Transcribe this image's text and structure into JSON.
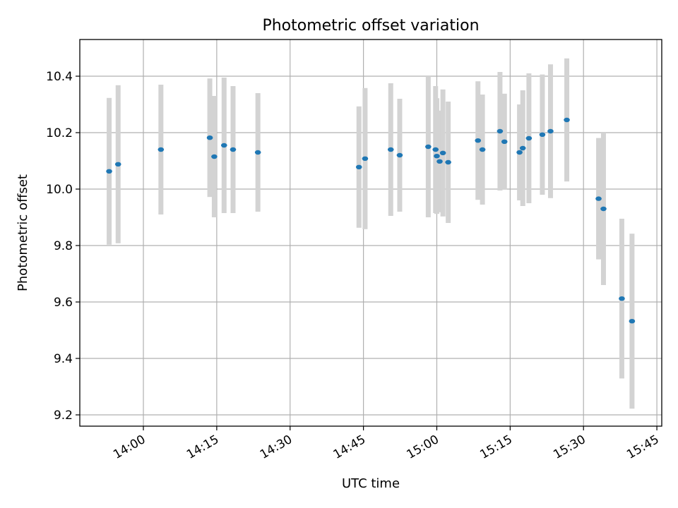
{
  "chart_data": {
    "type": "scatter",
    "title": "Photometric offset variation",
    "xlabel": "UTC time",
    "ylabel": "Photometric offset",
    "x_unit": "minutes",
    "xlim": [
      "13:47",
      "15:46"
    ],
    "ylim": [
      9.16,
      10.53
    ],
    "xticks": [
      "14:00",
      "14:15",
      "14:30",
      "14:45",
      "15:00",
      "15:15",
      "15:30",
      "15:45"
    ],
    "yticks": [
      9.2,
      9.4,
      9.6,
      9.8,
      10.0,
      10.2,
      10.4
    ],
    "ytick_labels": [
      "9.2",
      "9.4",
      "9.6",
      "9.8",
      "10.0",
      "10.2",
      "10.4"
    ],
    "grid": true,
    "colors": {
      "point": "#1f77b4",
      "errorbar": "#d3d3d3",
      "grid": "#b0b0b0"
    },
    "points": [
      {
        "x": "13:53:00",
        "y": 10.063,
        "err": 0.26
      },
      {
        "x": "13:54:50",
        "y": 10.088,
        "err": 0.28
      },
      {
        "x": "14:03:35",
        "y": 10.14,
        "err": 0.23
      },
      {
        "x": "14:13:35",
        "y": 10.182,
        "err": 0.21
      },
      {
        "x": "14:14:30",
        "y": 10.115,
        "err": 0.215
      },
      {
        "x": "14:16:30",
        "y": 10.155,
        "err": 0.24
      },
      {
        "x": "14:18:20",
        "y": 10.14,
        "err": 0.225
      },
      {
        "x": "14:23:25",
        "y": 10.13,
        "err": 0.21
      },
      {
        "x": "14:44:05",
        "y": 10.078,
        "err": 0.215
      },
      {
        "x": "14:45:20",
        "y": 10.108,
        "err": 0.25
      },
      {
        "x": "14:50:35",
        "y": 10.14,
        "err": 0.235
      },
      {
        "x": "14:52:25",
        "y": 10.12,
        "err": 0.2
      },
      {
        "x": "14:58:15",
        "y": 10.15,
        "err": 0.25
      },
      {
        "x": "14:59:45",
        "y": 10.14,
        "err": 0.225
      },
      {
        "x": "15:00:00",
        "y": 10.117,
        "err": 0.205
      },
      {
        "x": "15:00:35",
        "y": 10.098,
        "err": 0.18
      },
      {
        "x": "15:01:15",
        "y": 10.128,
        "err": 0.225
      },
      {
        "x": "15:02:20",
        "y": 10.095,
        "err": 0.215
      },
      {
        "x": "15:08:25",
        "y": 10.172,
        "err": 0.21
      },
      {
        "x": "15:09:20",
        "y": 10.14,
        "err": 0.195
      },
      {
        "x": "15:12:55",
        "y": 10.205,
        "err": 0.21
      },
      {
        "x": "15:13:50",
        "y": 10.168,
        "err": 0.17
      },
      {
        "x": "15:16:55",
        "y": 10.13,
        "err": 0.17
      },
      {
        "x": "15:17:35",
        "y": 10.145,
        "err": 0.205
      },
      {
        "x": "15:18:50",
        "y": 10.18,
        "err": 0.23
      },
      {
        "x": "15:21:35",
        "y": 10.193,
        "err": 0.213
      },
      {
        "x": "15:23:15",
        "y": 10.205,
        "err": 0.237
      },
      {
        "x": "15:26:35",
        "y": 10.245,
        "err": 0.218
      },
      {
        "x": "15:33:05",
        "y": 9.966,
        "err": 0.215
      },
      {
        "x": "15:34:05",
        "y": 9.93,
        "err": 0.27
      },
      {
        "x": "15:37:50",
        "y": 9.612,
        "err": 0.283
      },
      {
        "x": "15:39:55",
        "y": 9.532,
        "err": 0.31
      }
    ]
  }
}
